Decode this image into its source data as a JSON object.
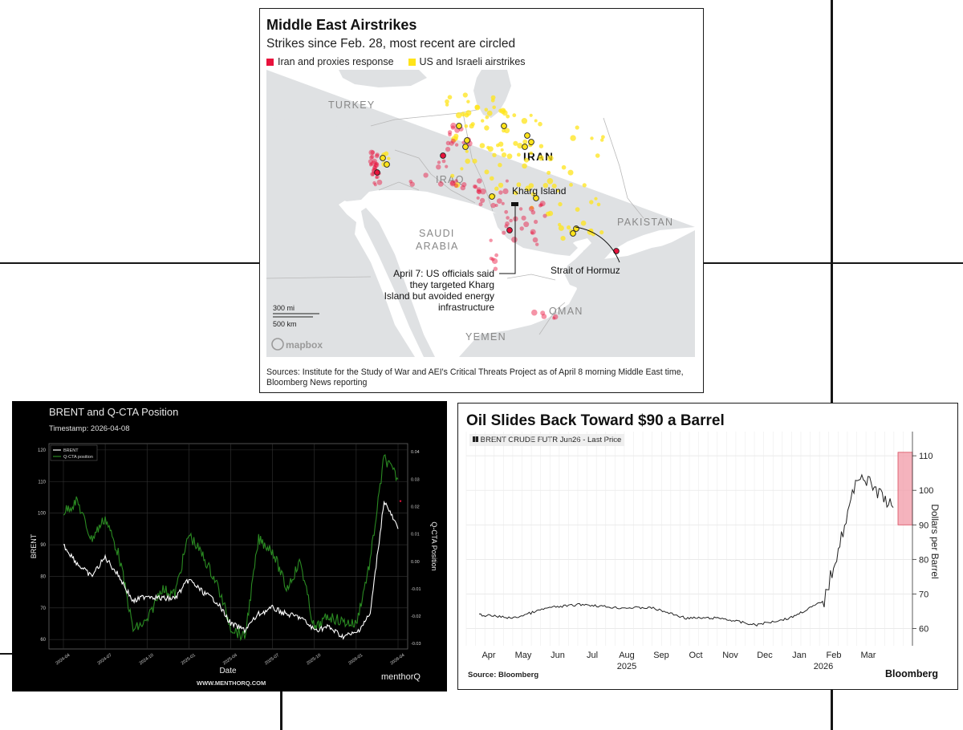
{
  "map": {
    "title": "Middle East Airstrikes",
    "subtitle": "Strikes since Feb. 28, most recent are circled",
    "legend": [
      {
        "label": "Iran and proxies response",
        "color": "#e8123c"
      },
      {
        "label": "US and Israeli airstrikes",
        "color": "#ffe41a"
      }
    ],
    "countries": [
      "TURKEY",
      "IRAQ",
      "IRAN",
      "SAUDI",
      "ARABIA",
      "PAKISTAN",
      "OMAN",
      "YEMEN"
    ],
    "annotations": {
      "kharg": "Kharg Island",
      "hormuz": "Strait of Hormuz",
      "april7": [
        "April 7: US officials said",
        "they targeted Kharg",
        "Island but avoided energy",
        "infrastructure"
      ]
    },
    "scale": {
      "mi": "300 mi",
      "km": "500 km"
    },
    "mapbox": "mapbox",
    "source": "Sources: Institute for the Study of War and AEI's Critical Threats Project as of April 8 morning Middle East time, Bloomberg News reporting"
  },
  "brent_chart": {
    "title": "BRENT and Q-CTA Position",
    "timestamp": "Timestamp: 2026-04-08",
    "website": "WWW.MENTHORQ.COM",
    "logo": "menthorQ",
    "chart_data": {
      "type": "line",
      "xlabel": "Date",
      "ylabel": "BRENT",
      "y2label": "Q-CTA Position",
      "legend": [
        "BRENT",
        "Q-CTA position"
      ],
      "legend_placement": "top-left",
      "grid": true,
      "ylim": [
        57,
        122
      ],
      "y2lim": [
        -0.032,
        0.043
      ],
      "yticks": [
        60,
        70,
        80,
        90,
        100,
        110,
        120
      ],
      "y2ticks": [
        "-0.03",
        "-0.02",
        "-0.01",
        "0.00",
        "0.01",
        "0.02",
        "0.03",
        "0.04"
      ],
      "xticks": [
        "2024-04",
        "2024-07",
        "2024-10",
        "2025-01",
        "2025-04",
        "2025-07",
        "2025-10",
        "2026-01",
        "2026-04"
      ],
      "x": [
        "2024-04",
        "2024-05",
        "2024-06",
        "2024-07",
        "2024-08",
        "2024-09",
        "2024-10",
        "2024-11",
        "2024-12",
        "2025-01",
        "2025-02",
        "2025-03",
        "2025-04",
        "2025-05",
        "2025-06",
        "2025-07",
        "2025-08",
        "2025-09",
        "2025-10",
        "2025-11",
        "2025-12",
        "2026-01",
        "2026-02",
        "2026-03",
        "2026-04"
      ],
      "series": [
        {
          "name": "BRENT",
          "color": "#ffffff",
          "values": [
            90,
            84,
            80,
            86,
            80,
            72,
            74,
            73,
            73,
            79,
            75,
            72,
            65,
            63,
            68,
            70,
            68,
            67,
            63,
            64,
            61,
            62,
            68,
            104,
            95
          ]
        },
        {
          "name": "Q-CTA position",
          "color": "#2a8a22",
          "values": [
            0.018,
            0.022,
            0.008,
            0.016,
            0.002,
            -0.025,
            -0.022,
            -0.01,
            -0.012,
            0.01,
            0.002,
            -0.008,
            -0.024,
            -0.028,
            0.008,
            0.004,
            -0.01,
            0.0,
            -0.025,
            -0.02,
            -0.022,
            -0.023,
            0.0,
            0.038,
            0.03
          ]
        }
      ]
    }
  },
  "oil_chart": {
    "title": "Oil Slides Back Toward $90 a Barrel",
    "legend_label": "BRENT CRUDE FUTR Jun26 - Last Price",
    "source": "Source: Bloomberg",
    "logo": "Bloomberg",
    "chart_data": {
      "type": "line",
      "ylabel": "Dollars per Barrel",
      "ylim": [
        55,
        117
      ],
      "yticks": [
        60,
        70,
        80,
        90,
        100,
        110
      ],
      "grid": true,
      "xticks": [
        "Apr",
        "May",
        "Jun",
        "Jul",
        "Aug",
        "Sep",
        "Oct",
        "Nov",
        "Dec",
        "Jan",
        "Feb",
        "Mar"
      ],
      "year_labels": [
        "2025",
        "2026"
      ],
      "highlight_range": [
        90,
        111
      ],
      "x": [
        "2025-04",
        "2025-05",
        "2025-06",
        "2025-07",
        "2025-08",
        "2025-09",
        "2025-10",
        "2025-11",
        "2025-12",
        "2026-01",
        "2026-02",
        "2026-03",
        "2026-04"
      ],
      "series": [
        {
          "name": "BRENT CRUDE FUTR Jun26 - Last Price",
          "color": "#222222",
          "values": [
            64,
            63,
            66,
            67,
            66,
            66,
            63,
            63,
            61,
            63,
            68,
            105,
            95
          ]
        }
      ]
    }
  }
}
